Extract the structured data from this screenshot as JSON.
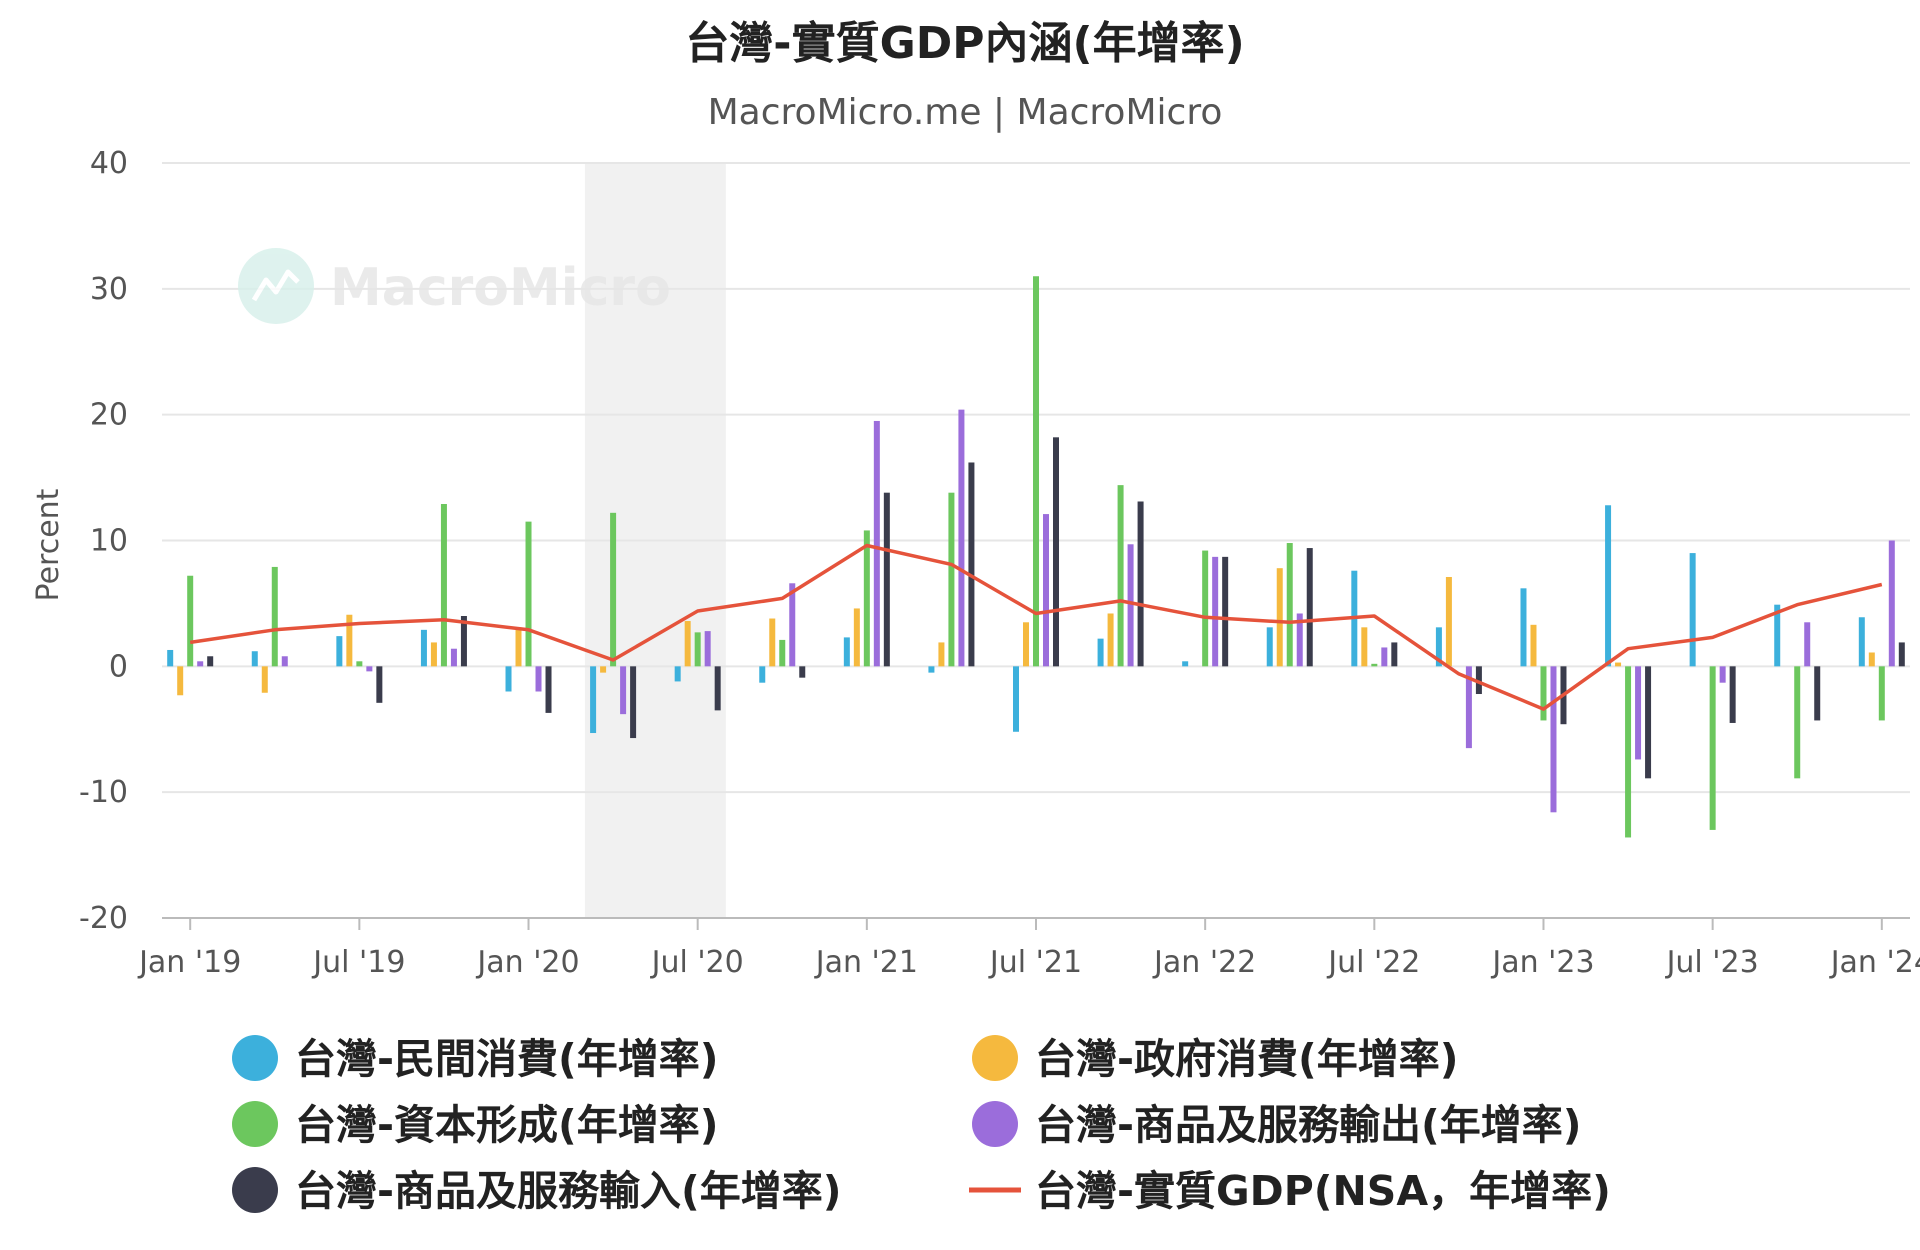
{
  "chart_data": {
    "type": "bar",
    "title": "台灣-實質GDP內涵(年增率)",
    "subtitle": "MacroMicro.me | MacroMicro",
    "watermark": "MacroMicro",
    "ylabel": "Percent",
    "ylim": [
      -20,
      40
    ],
    "yticks": [
      40,
      30,
      20,
      10,
      0,
      -10,
      -20
    ],
    "xticks": [
      "Jan '19",
      "Jul '19",
      "Jan '20",
      "Jul '20",
      "Jan '21",
      "Jul '21",
      "Jan '22",
      "Jul '22",
      "Jan '23",
      "Jul '23",
      "Jan '24"
    ],
    "xrange": [
      "2018-12",
      "2024-02"
    ],
    "shaded_period": [
      "2020-03",
      "2020-08"
    ],
    "dates": [
      "2019-01",
      "2019-04",
      "2019-07",
      "2019-10",
      "2020-01",
      "2020-04",
      "2020-07",
      "2020-10",
      "2021-01",
      "2021-04",
      "2021-07",
      "2021-10",
      "2022-01",
      "2022-04",
      "2022-07",
      "2022-10",
      "2023-01",
      "2023-04",
      "2023-07",
      "2023-10",
      "2024-01"
    ],
    "series": [
      {
        "name": "台灣-民間消費(年增率)",
        "color": "#3cb0dc",
        "type": "bar",
        "values": [
          1.3,
          1.2,
          2.4,
          2.9,
          -2.0,
          -5.3,
          -1.2,
          -1.3,
          2.3,
          -0.5,
          -5.2,
          2.2,
          0.4,
          3.1,
          7.6,
          3.1,
          6.2,
          12.8,
          9.0,
          4.9,
          3.9
        ]
      },
      {
        "name": "台灣-政府消費(年增率)",
        "color": "#f5b93e",
        "type": "bar",
        "values": [
          -2.3,
          -2.1,
          4.1,
          1.9,
          3.1,
          -0.5,
          3.6,
          3.8,
          4.6,
          1.9,
          3.5,
          4.2,
          0.0,
          7.8,
          3.1,
          7.1,
          3.3,
          0.3,
          0.0,
          0.0,
          1.1
        ]
      },
      {
        "name": "台灣-資本形成(年增率)",
        "color": "#6cc75e",
        "type": "bar",
        "values": [
          7.2,
          7.9,
          0.4,
          12.9,
          11.5,
          12.2,
          2.7,
          2.1,
          10.8,
          13.8,
          31.0,
          14.4,
          9.2,
          9.8,
          0.2,
          0.0,
          -4.3,
          -13.6,
          -13.0,
          -8.9,
          -4.3
        ]
      },
      {
        "name": "台灣-商品及服務輸出(年增率)",
        "color": "#9b6ddb",
        "type": "bar",
        "values": [
          0.4,
          0.8,
          -0.4,
          1.4,
          -2.0,
          -3.8,
          2.8,
          6.6,
          19.5,
          20.4,
          12.1,
          9.7,
          8.7,
          4.2,
          1.5,
          -6.5,
          -11.6,
          -7.4,
          -1.3,
          3.5,
          10.0
        ]
      },
      {
        "name": "台灣-商品及服務輸入(年增率)",
        "color": "#3a3c4c",
        "type": "bar",
        "values": [
          0.8,
          0.0,
          -2.9,
          4.0,
          -3.7,
          -5.7,
          -3.5,
          -0.9,
          13.8,
          16.2,
          18.2,
          13.1,
          8.7,
          9.4,
          1.9,
          -2.2,
          -4.6,
          -8.9,
          -4.5,
          -4.3,
          1.9
        ]
      },
      {
        "name": "台灣-實質GDP(NSA，年增率)",
        "color": "#e5533b",
        "type": "line",
        "values": [
          1.9,
          2.9,
          3.4,
          3.7,
          2.9,
          0.5,
          4.4,
          5.4,
          9.6,
          8.1,
          4.2,
          5.2,
          3.9,
          3.5,
          4.0,
          -0.6,
          -3.4,
          1.4,
          2.3,
          4.9,
          6.5
        ]
      }
    ],
    "grid": true,
    "legend_position": "bottom"
  }
}
